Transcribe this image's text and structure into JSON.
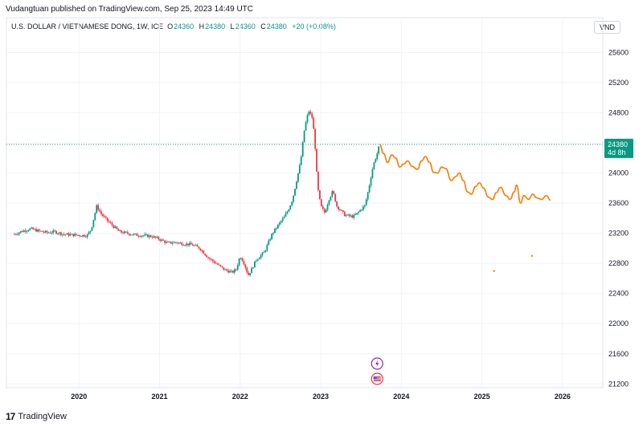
{
  "header": {
    "published": "Vudangtuan published on TradingView.com, Sep 25, 2023 14:49 UTC"
  },
  "symbol": {
    "name": "U.S. DOLLAR / VIETNAMESE DONG, 1W, ICE",
    "o_label": "O",
    "o": "24360",
    "h_label": "H",
    "h": "24380",
    "l_label": "L",
    "l": "24360",
    "c_label": "C",
    "c": "24380",
    "change": "+20 (+0.08%)"
  },
  "currency_button": "VND",
  "footer": {
    "brand": "TradingView",
    "logo_glyph": "17"
  },
  "icons": [
    "lightning-icon",
    "us-flag-icon",
    "tradingview-logo-icon"
  ],
  "colors": {
    "up": "#089981",
    "down": "#f23645",
    "projection": "#f57c00",
    "price_tag": "#089981"
  },
  "chart_data": {
    "type": "candlestick",
    "x_tick_labels": [
      "2020",
      "2021",
      "2022",
      "2023",
      "2024",
      "2025",
      "2026"
    ],
    "y_tick_labels": [
      "25600",
      "25200",
      "24800",
      "24400",
      "24000",
      "23600",
      "23200",
      "22800",
      "22400",
      "22000",
      "21600",
      "21200"
    ],
    "ylim": [
      21150,
      25850
    ],
    "xlim": [
      2019.1,
      2026.5
    ],
    "last_price": {
      "label": "24380",
      "countdown": "4d 8h",
      "value": 24380
    },
    "close_series": [
      [
        2019.2,
        23190
      ],
      [
        2019.3,
        23230
      ],
      [
        2019.4,
        23260
      ],
      [
        2019.5,
        23230
      ],
      [
        2019.6,
        23210
      ],
      [
        2019.7,
        23220
      ],
      [
        2019.8,
        23190
      ],
      [
        2019.9,
        23180
      ],
      [
        2020.0,
        23175
      ],
      [
        2020.1,
        23170
      ],
      [
        2020.15,
        23250
      ],
      [
        2020.22,
        23560
      ],
      [
        2020.28,
        23450
      ],
      [
        2020.35,
        23370
      ],
      [
        2020.42,
        23300
      ],
      [
        2020.5,
        23220
      ],
      [
        2020.6,
        23200
      ],
      [
        2020.7,
        23180
      ],
      [
        2020.8,
        23170
      ],
      [
        2020.9,
        23160
      ],
      [
        2021.0,
        23120
      ],
      [
        2021.1,
        23070
      ],
      [
        2021.2,
        23080
      ],
      [
        2021.3,
        23060
      ],
      [
        2021.4,
        23050
      ],
      [
        2021.5,
        23000
      ],
      [
        2021.6,
        22880
      ],
      [
        2021.7,
        22800
      ],
      [
        2021.8,
        22720
      ],
      [
        2021.9,
        22680
      ],
      [
        2021.95,
        22720
      ],
      [
        2022.0,
        22900
      ],
      [
        2022.05,
        22800
      ],
      [
        2022.1,
        22640
      ],
      [
        2022.15,
        22740
      ],
      [
        2022.2,
        22850
      ],
      [
        2022.3,
        22950
      ],
      [
        2022.4,
        23200
      ],
      [
        2022.5,
        23350
      ],
      [
        2022.55,
        23420
      ],
      [
        2022.6,
        23520
      ],
      [
        2022.65,
        23650
      ],
      [
        2022.7,
        23900
      ],
      [
        2022.75,
        24150
      ],
      [
        2022.8,
        24600
      ],
      [
        2022.85,
        24830
      ],
      [
        2022.9,
        24720
      ],
      [
        2022.93,
        24350
      ],
      [
        2022.96,
        23820
      ],
      [
        2023.0,
        23560
      ],
      [
        2023.05,
        23470
      ],
      [
        2023.1,
        23650
      ],
      [
        2023.15,
        23760
      ],
      [
        2023.2,
        23560
      ],
      [
        2023.3,
        23440
      ],
      [
        2023.4,
        23420
      ],
      [
        2023.45,
        23460
      ],
      [
        2023.5,
        23520
      ],
      [
        2023.55,
        23570
      ],
      [
        2023.6,
        23820
      ],
      [
        2023.65,
        24100
      ],
      [
        2023.7,
        24260
      ],
      [
        2023.73,
        24380
      ]
    ],
    "projection": [
      [
        2023.73,
        24380
      ],
      [
        2023.78,
        24260
      ],
      [
        2023.83,
        24140
      ],
      [
        2023.88,
        24240
      ],
      [
        2023.93,
        24200
      ],
      [
        2023.98,
        24080
      ],
      [
        2024.03,
        24120
      ],
      [
        2024.08,
        24160
      ],
      [
        2024.13,
        24090
      ],
      [
        2024.2,
        24050
      ],
      [
        2024.25,
        24160
      ],
      [
        2024.3,
        24220
      ],
      [
        2024.35,
        24140
      ],
      [
        2024.4,
        24010
      ],
      [
        2024.45,
        24000
      ],
      [
        2024.5,
        24080
      ],
      [
        2024.55,
        24060
      ],
      [
        2024.62,
        23900
      ],
      [
        2024.67,
        23950
      ],
      [
        2024.72,
        24000
      ],
      [
        2024.77,
        23900
      ],
      [
        2024.82,
        23750
      ],
      [
        2024.87,
        23720
      ],
      [
        2024.92,
        23820
      ],
      [
        2024.97,
        23870
      ],
      [
        2025.02,
        23800
      ],
      [
        2025.08,
        23680
      ],
      [
        2025.13,
        23650
      ],
      [
        2025.18,
        23740
      ],
      [
        2025.23,
        23810
      ],
      [
        2025.3,
        23700
      ],
      [
        2025.35,
        23650
      ],
      [
        2025.4,
        23750
      ],
      [
        2025.43,
        23840
      ],
      [
        2025.48,
        23600
      ],
      [
        2025.52,
        23700
      ],
      [
        2025.58,
        23650
      ],
      [
        2025.63,
        23720
      ],
      [
        2025.68,
        23670
      ],
      [
        2025.74,
        23650
      ],
      [
        2025.8,
        23700
      ],
      [
        2025.85,
        23640
      ]
    ],
    "projection_dots": [
      [
        2025.15,
        22700
      ],
      [
        2025.62,
        22900
      ]
    ]
  }
}
